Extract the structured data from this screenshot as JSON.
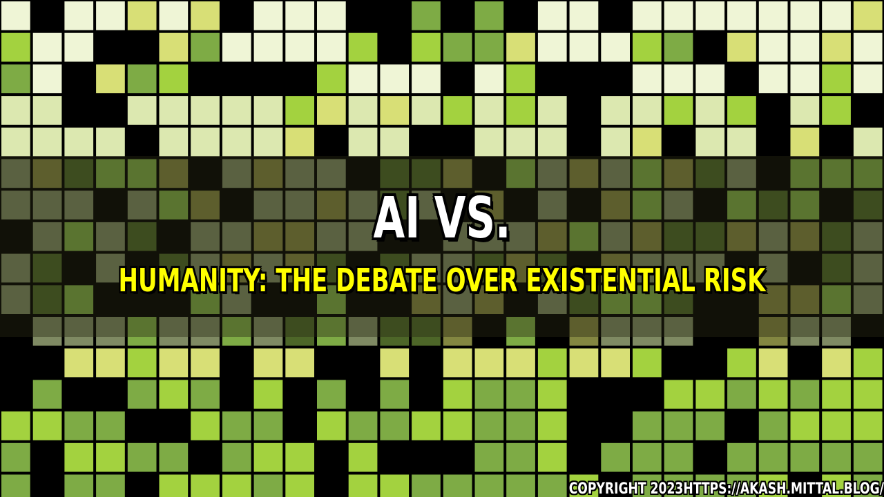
{
  "title": {
    "line1": "AI VS.",
    "line2": "HUMANITY: THE DEBATE OVER EXISTENTIAL RISK"
  },
  "footer": {
    "copyright": "COPYRIGHT 2023HTTPS://AKASH.MITTAL.BLOG/"
  },
  "background": {
    "description_icon": "green-tile-mosaic",
    "colors": {
      "black": "#000000",
      "cream": "#eff5d6",
      "pale_green": "#dce8b0",
      "lime": "#d8df76",
      "bright_green": "#a3d23f",
      "mid_green": "#7eab45",
      "olive_gray": "#7f8a63",
      "dark_olive": "#4d6628",
      "olive": "#838641"
    }
  }
}
